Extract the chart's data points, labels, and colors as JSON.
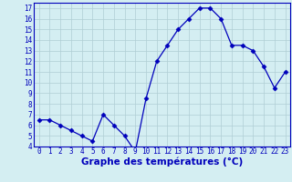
{
  "x": [
    0,
    1,
    2,
    3,
    4,
    5,
    6,
    7,
    8,
    9,
    10,
    11,
    12,
    13,
    14,
    15,
    16,
    17,
    18,
    19,
    20,
    21,
    22,
    23
  ],
  "y": [
    6.5,
    6.5,
    6.0,
    5.5,
    5.0,
    4.5,
    7.0,
    6.0,
    5.0,
    3.5,
    8.5,
    12.0,
    13.5,
    15.0,
    16.0,
    17.0,
    17.0,
    16.0,
    13.5,
    13.5,
    13.0,
    11.5,
    9.5,
    11.0
  ],
  "line_color": "#0000bb",
  "marker": "D",
  "marker_size": 2.5,
  "background_color": "#d4eef2",
  "grid_color": "#b0cdd4",
  "xlabel": "Graphe des températures (°C)",
  "xlabel_fontsize": 7.5,
  "ylim": [
    4,
    17.5
  ],
  "xlim": [
    -0.5,
    23.5
  ],
  "yticks": [
    4,
    5,
    6,
    7,
    8,
    9,
    10,
    11,
    12,
    13,
    14,
    15,
    16,
    17
  ],
  "xticks": [
    0,
    1,
    2,
    3,
    4,
    5,
    6,
    7,
    8,
    9,
    10,
    11,
    12,
    13,
    14,
    15,
    16,
    17,
    18,
    19,
    20,
    21,
    22,
    23
  ],
  "tick_fontsize": 5.5,
  "spine_color": "#0000bb",
  "label_color": "#0000bb"
}
